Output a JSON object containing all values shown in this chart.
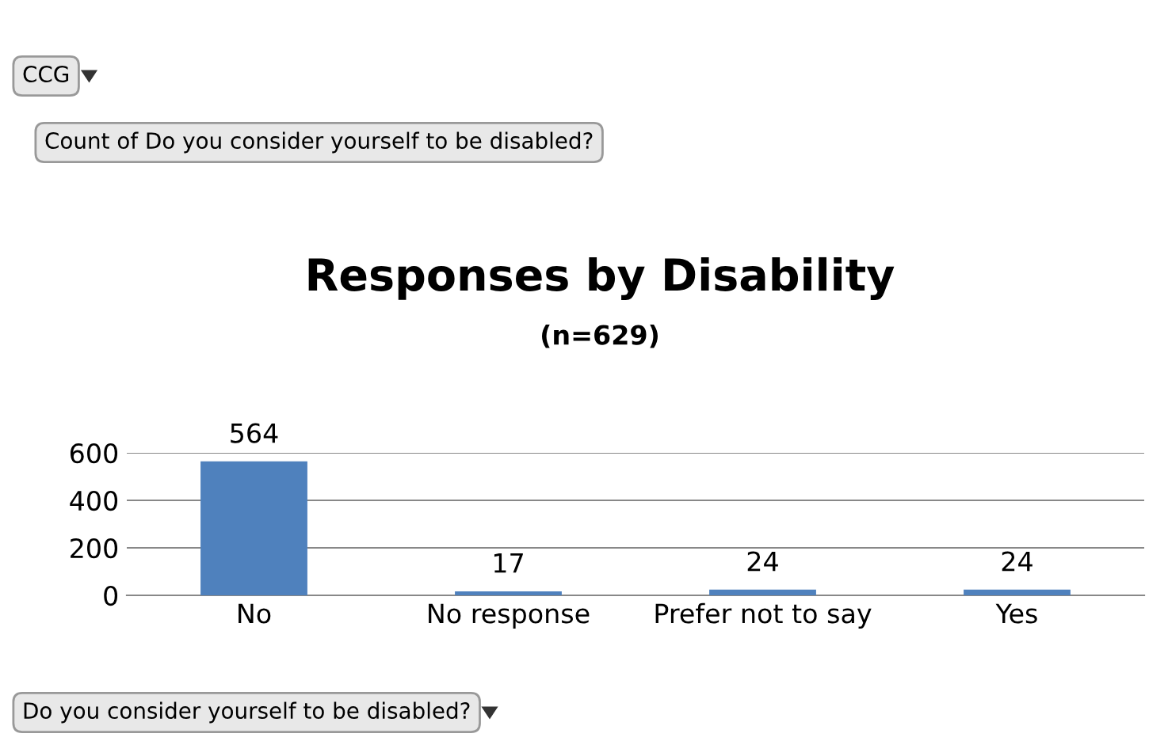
{
  "chart_data": {
    "type": "bar",
    "title": "Responses by Disability",
    "subtitle": "(n=629)",
    "categories": [
      "No",
      "No response",
      "Prefer not to say",
      "Yes"
    ],
    "values": [
      564,
      17,
      24,
      24
    ],
    "color": "#4f81bd",
    "ylim": [
      0,
      600
    ],
    "yticks": [
      0,
      200,
      400,
      600
    ],
    "grid": "y",
    "data_labels": true,
    "legend": false,
    "annotations": [
      "CCG",
      "Count of Do you consider yourself to be disabled?",
      "Do you consider yourself to be disabled?"
    ]
  }
}
